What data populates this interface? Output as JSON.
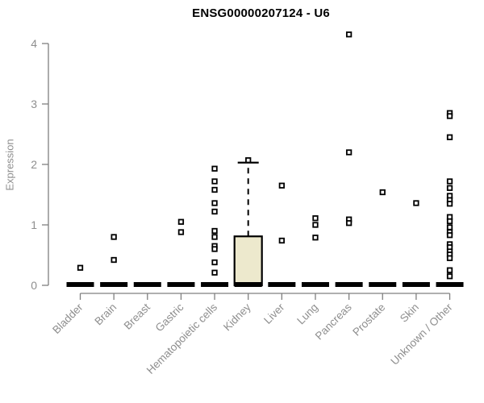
{
  "chart_data": {
    "type": "boxplot",
    "title": "ENSG00000207124 - U6",
    "ylabel": "Expression",
    "xlabel": "",
    "ylim": [
      0,
      4
    ],
    "yticks": [
      0,
      1,
      2,
      3,
      4
    ],
    "grid": false,
    "legend": false,
    "categories": [
      "Bladder",
      "Brain",
      "Breast",
      "Gastric",
      "Hematopoietic cells",
      "Kidney",
      "Liver",
      "Lung",
      "Pancreas",
      "Prostate",
      "Skin",
      "Unknown / Other"
    ],
    "boxes": [
      {
        "category": "Bladder",
        "whisker_low": 0,
        "q1": 0,
        "median": 0,
        "q3": 0,
        "whisker_high": 0,
        "outliers": [
          0.29
        ]
      },
      {
        "category": "Brain",
        "whisker_low": 0,
        "q1": 0,
        "median": 0,
        "q3": 0,
        "whisker_high": 0,
        "outliers": [
          0.8,
          0.42
        ]
      },
      {
        "category": "Breast",
        "whisker_low": 0,
        "q1": 0,
        "median": 0,
        "q3": 0,
        "whisker_high": 0,
        "outliers": []
      },
      {
        "category": "Gastric",
        "whisker_low": 0,
        "q1": 0,
        "median": 0,
        "q3": 0,
        "whisker_high": 0,
        "outliers": [
          1.05,
          0.88
        ]
      },
      {
        "category": "Hematopoietic cells",
        "whisker_low": 0,
        "q1": 0,
        "median": 0,
        "q3": 0,
        "whisker_high": 0,
        "outliers": [
          1.93,
          1.72,
          1.58,
          1.36,
          1.22,
          0.9,
          0.8,
          0.65,
          0.6,
          0.38,
          0.21
        ]
      },
      {
        "category": "Kidney",
        "whisker_low": 0,
        "q1": 0,
        "median": 0,
        "q3": 0.81,
        "whisker_high": 2.03,
        "outliers": [
          2.07
        ]
      },
      {
        "category": "Liver",
        "whisker_low": 0,
        "q1": 0,
        "median": 0,
        "q3": 0,
        "whisker_high": 0,
        "outliers": [
          1.65,
          0.74
        ]
      },
      {
        "category": "Lung",
        "whisker_low": 0,
        "q1": 0,
        "median": 0,
        "q3": 0,
        "whisker_high": 0,
        "outliers": [
          1.11,
          1.0,
          0.79
        ]
      },
      {
        "category": "Pancreas",
        "whisker_low": 0,
        "q1": 0,
        "median": 0,
        "q3": 0,
        "whisker_high": 0,
        "outliers": [
          4.15,
          2.2,
          1.09,
          1.03
        ]
      },
      {
        "category": "Prostate",
        "whisker_low": 0,
        "q1": 0,
        "median": 0,
        "q3": 0,
        "whisker_high": 0,
        "outliers": [
          1.54
        ]
      },
      {
        "category": "Skin",
        "whisker_low": 0,
        "q1": 0,
        "median": 0,
        "q3": 0,
        "whisker_high": 0,
        "outliers": [
          1.36
        ]
      },
      {
        "category": "Unknown / Other",
        "whisker_low": 0,
        "q1": 0,
        "median": 0,
        "q3": 0,
        "whisker_high": 0,
        "outliers": [
          2.85,
          2.8,
          2.45,
          1.72,
          1.61,
          1.48,
          1.41,
          1.35,
          1.13,
          1.06,
          0.96,
          0.88,
          0.83,
          0.68,
          0.63,
          0.56,
          0.51,
          0.45,
          0.25,
          0.15
        ]
      }
    ],
    "colors": {
      "box_fill": "#EDE9CD",
      "box_border": "#000000",
      "median": "#000000",
      "whisker": "#000000",
      "outlier_stroke": "#000000",
      "outlier_fill": "#ffffff",
      "axis_line": "#7f7f7f",
      "tick_text": "#8e8e8e",
      "title_text": "#000000",
      "background": "#ffffff"
    }
  }
}
